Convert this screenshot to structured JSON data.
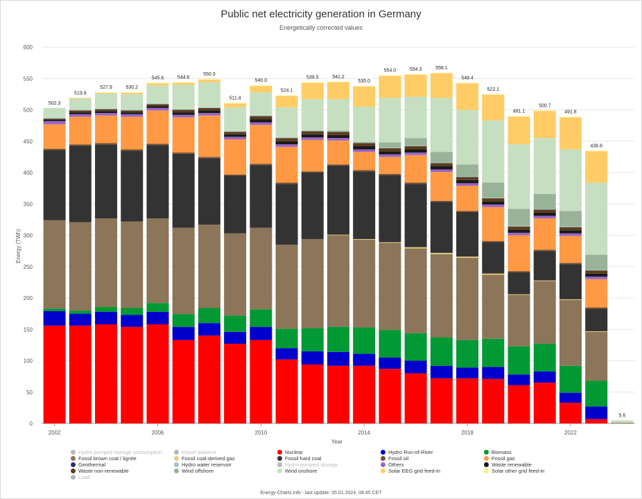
{
  "chart_data": {
    "type": "stacked-bar",
    "title": "Public net electricity generation in Germany",
    "subtitle": "Energetically corrected values",
    "xlabel": "Year",
    "ylabel": "Energy (TWh)",
    "ylim": [
      0,
      600
    ],
    "yticks": [
      0,
      50,
      100,
      150,
      200,
      250,
      300,
      350,
      400,
      450,
      500,
      550,
      600
    ],
    "years": [
      2002,
      2003,
      2004,
      2005,
      2006,
      2007,
      2008,
      2009,
      2010,
      2011,
      2012,
      2013,
      2014,
      2015,
      2016,
      2017,
      2018,
      2019,
      2020,
      2021,
      2022,
      2023,
      2024
    ],
    "xtick_years": [
      2002,
      2006,
      2010,
      2014,
      2018,
      2022
    ],
    "totals": [
      "502.3",
      "519.9",
      "527.9",
      "530.2",
      "545.6",
      "544.6",
      "550.3",
      "511.4",
      "540.0",
      "524.1",
      "539.5",
      "541.2",
      "535.0",
      "554.0",
      "554.3",
      "558.1",
      "548.4",
      "522.1",
      "491.1",
      "500.7",
      "491.8",
      "436.8",
      "5.6"
    ],
    "series": [
      {
        "name": "Nuclear",
        "color": "#ff0000",
        "values": [
          156,
          156,
          158,
          154,
          158,
          133,
          140,
          127,
          133,
          102,
          94,
          92,
          92,
          87,
          80,
          72,
          72,
          71,
          61,
          65,
          33,
          7,
          0
        ]
      },
      {
        "name": "Hydro Run-of-River",
        "color": "#0000cc",
        "values": [
          23,
          19,
          20,
          19,
          20,
          21,
          20,
          19,
          21,
          18,
          21,
          22,
          19,
          18,
          20,
          20,
          17,
          19,
          17,
          18,
          16,
          20,
          0
        ]
      },
      {
        "name": "Biomass",
        "color": "#009933",
        "values": [
          4,
          5,
          8,
          11,
          14,
          20,
          24,
          26,
          28,
          31,
          37,
          40,
          42,
          44,
          44,
          45,
          44,
          45,
          45,
          44,
          43,
          41,
          0
        ]
      },
      {
        "name": "Geothermal",
        "color": "#2a2a7a",
        "values": [
          0,
          0,
          0,
          0,
          0,
          0,
          0,
          0,
          0,
          0,
          0,
          0,
          0,
          0,
          0,
          0,
          0,
          0,
          0,
          0,
          0,
          0,
          0
        ]
      },
      {
        "name": "Fossil brown coal / lignite",
        "color": "#8c7558",
        "values": [
          141,
          141,
          141,
          138,
          135,
          138,
          133,
          131,
          130,
          134,
          142,
          146,
          140,
          139,
          135,
          133,
          131,
          102,
          82,
          100,
          105,
          78,
          1
        ]
      },
      {
        "name": "Fossil coal-derived gas",
        "color": "#e5cc80",
        "values": [
          0,
          0,
          0,
          0,
          0,
          0,
          0,
          0,
          0,
          0,
          0,
          1,
          1,
          1,
          2,
          2,
          2,
          2,
          1,
          1,
          1,
          1,
          0
        ]
      },
      {
        "name": "Fossil hard coal",
        "color": "#333333",
        "values": [
          112,
          122,
          118,
          113,
          117,
          118,
          106,
          92,
          100,
          97,
          106,
          110,
          108,
          107,
          101,
          81,
          71,
          50,
          35,
          47,
          56,
          36,
          0
        ]
      },
      {
        "name": "Fossil oil",
        "color": "#7a5230",
        "values": [
          2,
          2,
          2,
          2,
          2,
          2,
          2,
          2,
          2,
          2,
          2,
          2,
          2,
          2,
          2,
          2,
          2,
          2,
          2,
          2,
          2,
          2,
          0
        ]
      },
      {
        "name": "Fossil gas",
        "color": "#ff9944",
        "values": [
          39,
          44,
          44,
          52,
          53,
          56,
          66,
          56,
          62,
          57,
          50,
          38,
          29,
          27,
          44,
          46,
          40,
          54,
          57,
          50,
          43,
          45,
          0
        ]
      },
      {
        "name": "Others",
        "color": "#9966cc",
        "values": [
          5,
          4,
          4,
          4,
          4,
          4,
          4,
          4,
          4,
          4,
          4,
          4,
          4,
          4,
          4,
          4,
          4,
          4,
          4,
          4,
          4,
          4,
          0
        ]
      },
      {
        "name": "Waste renewable",
        "color": "#1a1a1a",
        "values": [
          2,
          3,
          3,
          3,
          3,
          4,
          4,
          4,
          5,
          5,
          5,
          5,
          5,
          5,
          5,
          5,
          5,
          5,
          5,
          5,
          5,
          5,
          0
        ]
      },
      {
        "name": "Waste non-renewable",
        "color": "#5c3d1a",
        "values": [
          2,
          3,
          3,
          3,
          3,
          4,
          4,
          4,
          5,
          5,
          5,
          5,
          5,
          5,
          5,
          5,
          5,
          5,
          5,
          5,
          5,
          5,
          0
        ]
      },
      {
        "name": "Hydro water reservoir",
        "color": "#a0c0d0",
        "values": [
          1,
          1,
          1,
          1,
          1,
          1,
          1,
          1,
          1,
          1,
          1,
          1,
          1,
          1,
          1,
          1,
          1,
          1,
          1,
          1,
          1,
          1,
          0
        ]
      },
      {
        "name": "Wind offshore",
        "color": "#99b399",
        "values": [
          0,
          0,
          0,
          0,
          0,
          0,
          0,
          0,
          0,
          0,
          0,
          1,
          1,
          8,
          12,
          17,
          19,
          24,
          27,
          24,
          25,
          24,
          0
        ]
      },
      {
        "name": "Wind onshore",
        "color": "#c6dfc0",
        "values": [
          16,
          18,
          24,
          25,
          29,
          39,
          40,
          38,
          37,
          48,
          50,
          50,
          56,
          71,
          66,
          86,
          87,
          99,
          103,
          89,
          98,
          115,
          4
        ]
      },
      {
        "name": "Solar EEG grid feed-in",
        "color": "#ffcc66",
        "values": [
          0,
          1,
          1,
          2,
          3,
          3,
          4,
          6,
          10,
          18,
          26,
          27,
          32,
          35,
          35,
          39,
          42,
          41,
          44,
          43,
          51,
          50,
          0
        ]
      },
      {
        "name": "Solar other grid feed-in",
        "color": "#ffee88",
        "values": [
          0,
          0,
          1,
          1,
          1,
          1,
          1,
          1,
          1,
          1,
          1,
          1,
          1,
          1,
          1,
          1,
          1,
          1,
          1,
          1,
          1,
          1,
          0
        ]
      }
    ]
  },
  "legend": [
    {
      "label": "Hydro pumped storage consumption",
      "color": "#b7b7b7",
      "enabled": false
    },
    {
      "label": "Import balance",
      "color": "#b7b7b7",
      "enabled": false
    },
    {
      "label": "Nuclear",
      "color": "#ff0000",
      "enabled": true
    },
    {
      "label": "Hydro Run-of-River",
      "color": "#0000cc",
      "enabled": true
    },
    {
      "label": "Biomass",
      "color": "#009933",
      "enabled": true
    },
    {
      "label": "Fossil brown coal / lignite",
      "color": "#8c7558",
      "enabled": true
    },
    {
      "label": "Fossil coal-derived gas",
      "color": "#e5cc80",
      "enabled": true
    },
    {
      "label": "Fossil hard coal",
      "color": "#333333",
      "enabled": true
    },
    {
      "label": "Fossil oil",
      "color": "#7a5230",
      "enabled": true
    },
    {
      "label": "Fossil gas",
      "color": "#ff9944",
      "enabled": true
    },
    {
      "label": "Geothermal",
      "color": "#2a2a7a",
      "enabled": true
    },
    {
      "label": "Hydro water reservoir",
      "color": "#a0c0d0",
      "enabled": true
    },
    {
      "label": "Hydro pumped storage",
      "color": "#b7b7b7",
      "enabled": false
    },
    {
      "label": "Others",
      "color": "#9966cc",
      "enabled": true
    },
    {
      "label": "Waste renewable",
      "color": "#1a1a1a",
      "enabled": true
    },
    {
      "label": "Waste non-renewable",
      "color": "#5c3d1a",
      "enabled": true
    },
    {
      "label": "Wind offshore",
      "color": "#99b399",
      "enabled": true
    },
    {
      "label": "Wind onshore",
      "color": "#c6dfc0",
      "enabled": true
    },
    {
      "label": "Solar EEG grid feed-in",
      "color": "#ffcc66",
      "enabled": true
    },
    {
      "label": "Solar other grid feed-in",
      "color": "#ffee88",
      "enabled": true
    },
    {
      "label": "Load",
      "color": "#b7b7b7",
      "enabled": false
    }
  ],
  "footer": "Energy-Charts.info - last update: 05.01.2024, 08:45 CET"
}
